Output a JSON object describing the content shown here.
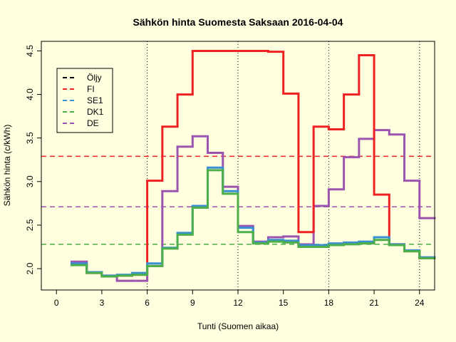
{
  "chart_data": {
    "type": "step",
    "title": "Sähkön hinta Suomesta Saksaan 2016-04-04",
    "x_label": "Tunti (Suomen aikaa)",
    "y_label": "Sähkön hinta (c/kWh)",
    "x": [
      1,
      2,
      3,
      4,
      5,
      6,
      7,
      8,
      9,
      10,
      11,
      12,
      13,
      14,
      15,
      16,
      17,
      18,
      19,
      20,
      21,
      22,
      23,
      24
    ],
    "series": [
      {
        "name": "Öljy",
        "color": "#000000",
        "values": [
          null,
          null,
          null,
          null,
          null,
          null,
          null,
          null,
          null,
          null,
          null,
          null,
          null,
          null,
          null,
          null,
          null,
          null,
          null,
          null,
          null,
          null,
          null,
          null
        ]
      },
      {
        "name": "DE",
        "color": "#9b55b0",
        "values": [
          2.08,
          1.96,
          1.92,
          1.86,
          1.86,
          2.03,
          2.89,
          3.4,
          3.52,
          3.33,
          2.94,
          2.49,
          2.31,
          2.36,
          2.37,
          2.28,
          2.72,
          2.91,
          3.28,
          3.49,
          3.59,
          3.54,
          3.01,
          2.58
        ]
      },
      {
        "name": "FI",
        "color": "#ee2222",
        "values": [
          2.05,
          1.95,
          1.91,
          1.92,
          1.93,
          3.01,
          3.63,
          4.0,
          4.5,
          4.5,
          4.5,
          4.5,
          4.5,
          4.49,
          4.01,
          2.42,
          3.63,
          3.6,
          4.0,
          4.45,
          2.85,
          2.28,
          2.2,
          2.12
        ]
      },
      {
        "name": "SE1",
        "color": "#3a8fd0",
        "values": [
          2.06,
          1.96,
          1.92,
          1.93,
          1.95,
          2.06,
          2.24,
          2.41,
          2.72,
          3.16,
          2.89,
          2.47,
          2.3,
          2.33,
          2.32,
          2.27,
          2.27,
          2.29,
          2.3,
          2.31,
          2.36,
          2.28,
          2.21,
          2.13
        ]
      },
      {
        "name": "DK1",
        "color": "#4daf4a",
        "values": [
          2.04,
          1.95,
          1.91,
          1.92,
          1.93,
          2.03,
          2.23,
          2.39,
          2.7,
          3.13,
          2.86,
          2.42,
          2.29,
          2.31,
          2.3,
          2.25,
          2.25,
          2.27,
          2.28,
          2.29,
          2.33,
          2.27,
          2.2,
          2.12
        ]
      }
    ],
    "legend_order": [
      0,
      2,
      3,
      4,
      1
    ],
    "hlines": [
      {
        "color": "#ee2222",
        "value": 3.29
      },
      {
        "color": "#9b55b0",
        "value": 2.71
      },
      {
        "color": "#4daf4a",
        "value": 2.28
      }
    ],
    "vlines": [
      6,
      12,
      18,
      24
    ],
    "xlim": [
      -1,
      25
    ],
    "xticks": [
      0,
      3,
      6,
      9,
      12,
      15,
      18,
      21,
      24
    ],
    "ylim": [
      1.755,
      4.61
    ],
    "yticks": [
      {
        "value": 2,
        "label": "2.0"
      },
      2.5,
      {
        "value": 3,
        "label": "3.0"
      },
      3.5,
      {
        "value": 4,
        "label": "4.0"
      },
      4.5
    ],
    "legend": "topleft"
  }
}
